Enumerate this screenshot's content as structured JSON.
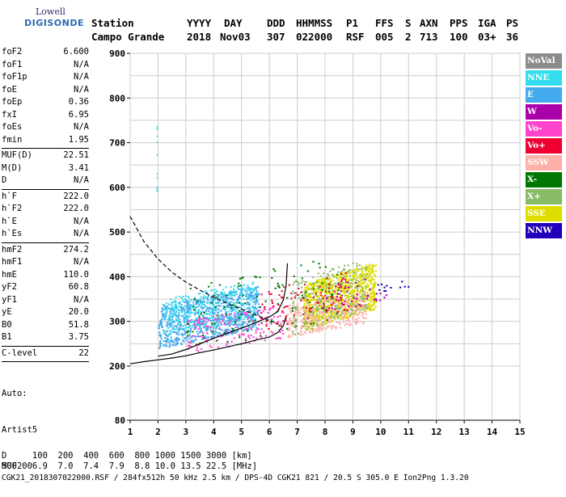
{
  "logo": {
    "line1": "Lowell",
    "line2": "DIGISONDE"
  },
  "header": {
    "labels": [
      "Station",
      "YYYY",
      "DAY",
      "DDD",
      "HHMMSS",
      "P1",
      "FFS",
      "S",
      "AXN",
      "PPS",
      "IGA",
      "PS"
    ],
    "values": [
      "Campo Grande",
      "2018",
      "Nov03",
      "307",
      "022000",
      "RSF",
      "005",
      "2",
      "713",
      "100",
      "03+",
      "36"
    ]
  },
  "params": [
    {
      "name": "foF2",
      "value": "6.600"
    },
    {
      "name": "foF1",
      "value": "N/A"
    },
    {
      "name": "foF1p",
      "value": "N/A"
    },
    {
      "name": "foE",
      "value": "N/A"
    },
    {
      "name": "foEp",
      "value": "0.36"
    },
    {
      "name": "fxI",
      "value": "6.95"
    },
    {
      "name": "foEs",
      "value": "N/A"
    },
    {
      "name": "fmin",
      "value": "1.95"
    },
    {
      "sep": true
    },
    {
      "name": "MUF(D)",
      "value": "22.51"
    },
    {
      "name": "M(D)",
      "value": "3.41"
    },
    {
      "name": "D",
      "value": "N/A"
    },
    {
      "sep": true
    },
    {
      "name": "h`F",
      "value": "222.0"
    },
    {
      "name": "h`F2",
      "value": "222.0"
    },
    {
      "name": "h`E",
      "value": "N/A"
    },
    {
      "name": "h`Es",
      "value": "N/A"
    },
    {
      "sep": true
    },
    {
      "name": "hmF2",
      "value": "274.2"
    },
    {
      "name": "hmF1",
      "value": "N/A"
    },
    {
      "name": "hmE",
      "value": "110.0"
    },
    {
      "name": "yF2",
      "value": "60.8"
    },
    {
      "name": "yF1",
      "value": "N/A"
    },
    {
      "name": "yE",
      "value": "20.0"
    },
    {
      "name": "B0",
      "value": "51.8"
    },
    {
      "name": "B1",
      "value": "3.75"
    },
    {
      "sep": true
    },
    {
      "name": "C-level",
      "value": "22"
    },
    {
      "sep": true
    }
  ],
  "auto": {
    "line1": "Auto:",
    "line2": "Artist5",
    "line3": "500200"
  },
  "legend": [
    {
      "label": "NoVal",
      "color": "#8c8c8c"
    },
    {
      "label": "NNE",
      "color": "#33ddee"
    },
    {
      "label": "E",
      "color": "#44aaee"
    },
    {
      "label": "W",
      "color": "#aa00aa"
    },
    {
      "label": "Vo-",
      "color": "#ff44cc"
    },
    {
      "label": "Vo+",
      "color": "#ee0033"
    },
    {
      "label": "SSW",
      "color": "#ffb0a8"
    },
    {
      "label": "X-",
      "color": "#007700"
    },
    {
      "label": "X+",
      "color": "#88bb66"
    },
    {
      "label": "SSE",
      "color": "#dddd00"
    },
    {
      "label": "NNW",
      "color": "#2200bb"
    }
  ],
  "footer": {
    "line1": "D     100  200  400  600  800 1000 1500 3000 [km]",
    "line2": "MUF   6.9  7.0  7.4  7.9  8.8 10.0 13.5 22.5 [MHz]",
    "line3": "CGK21_2018307022000.RSF / 284fx512h 50 kHz 2.5 km / DPS-4D CGK21 821 / 20.5 S 305.0 E Ion2Png 1.3.20"
  },
  "chart_data": {
    "type": "scatter",
    "xlim": [
      1,
      15
    ],
    "ylim": [
      80,
      900
    ],
    "xticks": [
      "1",
      "2",
      "3",
      "4",
      "5",
      "6",
      "7",
      "8",
      "9",
      "10",
      "11",
      "12",
      "13",
      "14",
      "15"
    ],
    "yticks": [
      "80",
      "200",
      "300",
      "400",
      "500",
      "600",
      "700",
      "800",
      "900"
    ],
    "grid": true,
    "traces": [
      {
        "name": "dashed",
        "style": "dashed",
        "x": [
          1.0,
          1.5,
          2.0,
          2.5,
          3.0,
          3.5,
          4.0,
          4.5,
          5.0,
          5.5,
          6.0,
          6.3
        ],
        "y": [
          535,
          478,
          440,
          410,
          388,
          370,
          354,
          340,
          327,
          315,
          302,
          295
        ]
      },
      {
        "name": "upper",
        "style": "solid",
        "x": [
          2.0,
          2.5,
          3.0,
          3.5,
          4.0,
          4.5,
          5.0,
          5.5,
          6.0,
          6.3,
          6.5,
          6.6,
          6.65
        ],
        "y": [
          222,
          227,
          237,
          250,
          262,
          274,
          285,
          297,
          310,
          322,
          348,
          380,
          430
        ]
      },
      {
        "name": "lower",
        "style": "solid",
        "x": [
          1.0,
          1.5,
          2.0,
          2.5,
          3.0,
          3.5,
          4.0,
          4.5,
          5.0,
          5.5,
          6.0,
          6.3,
          6.5,
          6.6
        ],
        "y": [
          205,
          210,
          214,
          218,
          223,
          230,
          236,
          243,
          250,
          258,
          265,
          275,
          290,
          310
        ]
      }
    ],
    "clusters": [
      {
        "color": "#44aaee",
        "x": [
          2.0,
          5.6
        ],
        "y": [
          240,
          370
        ],
        "n": 900
      },
      {
        "color": "#33ddee",
        "x": [
          2.2,
          5.5
        ],
        "y": [
          270,
          380
        ],
        "n": 300
      },
      {
        "color": "#dddd00",
        "x": [
          7.2,
          9.8
        ],
        "y": [
          280,
          420
        ],
        "n": 900
      },
      {
        "color": "#ffb0a8",
        "x": [
          6.6,
          9.5
        ],
        "y": [
          265,
          360
        ],
        "n": 400
      },
      {
        "color": "#88bb66",
        "x": [
          6.8,
          9.5
        ],
        "y": [
          270,
          430
        ],
        "n": 250
      },
      {
        "color": "#007700",
        "x": [
          3.0,
          8.5
        ],
        "y": [
          230,
          430
        ],
        "n": 120
      },
      {
        "color": "#ee0033",
        "x": [
          5.6,
          8.8
        ],
        "y": [
          280,
          400
        ],
        "n": 100
      },
      {
        "color": "#ff44cc",
        "x": [
          3.0,
          6.6
        ],
        "y": [
          230,
          330
        ],
        "n": 150
      },
      {
        "color": "#aa00aa",
        "x": [
          8.0,
          10.2
        ],
        "y": [
          320,
          400
        ],
        "n": 40
      },
      {
        "color": "#2200bb",
        "x": [
          9.5,
          11.0
        ],
        "y": [
          360,
          390
        ],
        "n": 12
      }
    ]
  }
}
